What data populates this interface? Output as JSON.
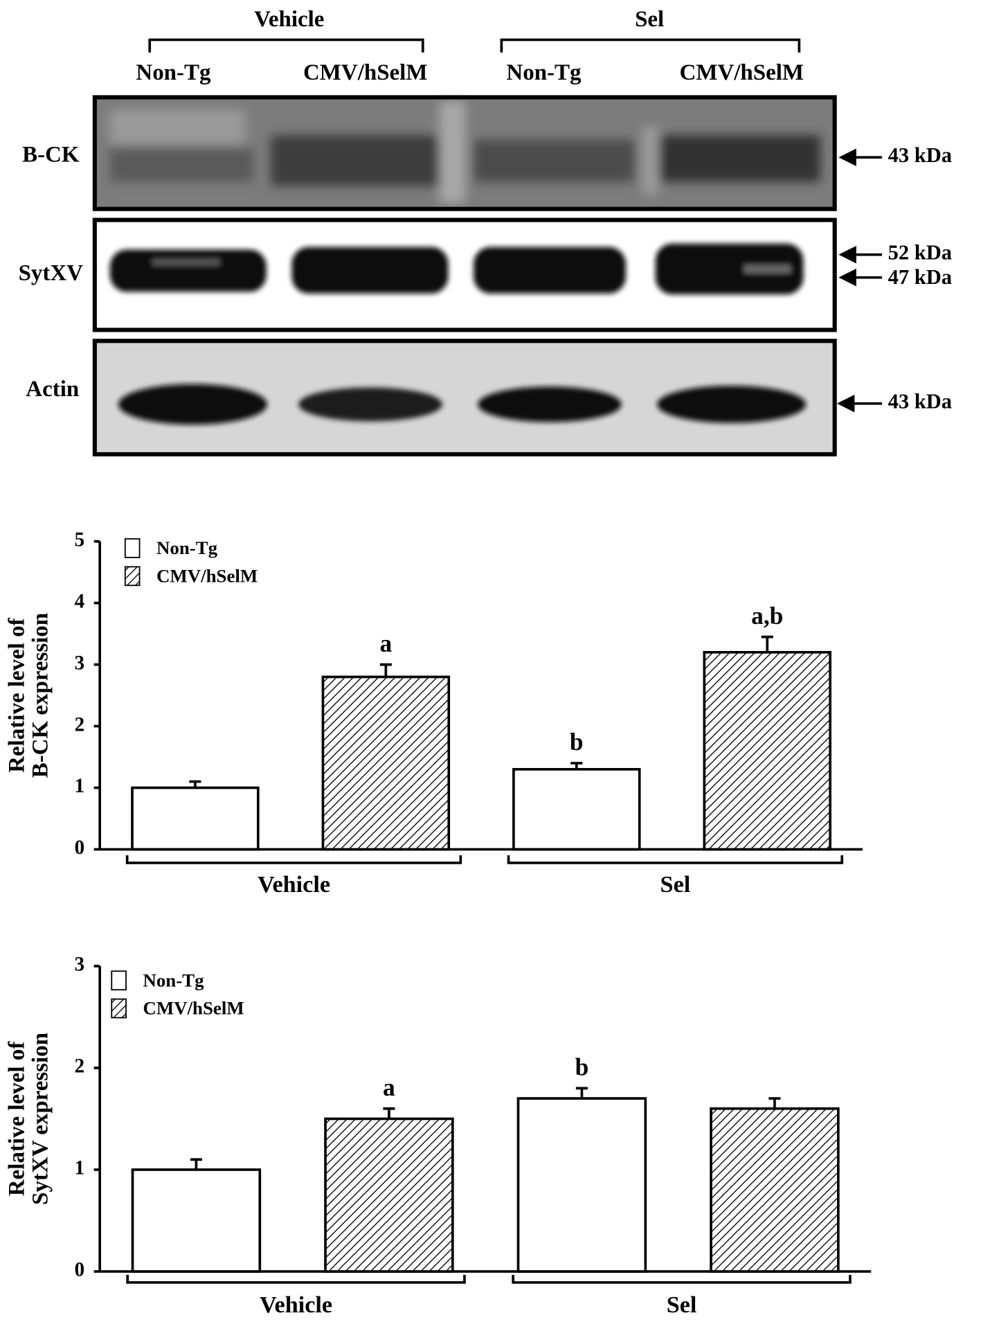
{
  "blot": {
    "groups": [
      "Vehicle",
      "Sel"
    ],
    "lanes": [
      "Non-Tg",
      "CMV/hSelM",
      "Non-Tg",
      "CMV/hSelM"
    ],
    "rows": [
      {
        "label": "B-CK",
        "markers": [
          "43 kDa"
        ]
      },
      {
        "label": "SytXV",
        "markers": [
          "52 kDa",
          "47 kDa"
        ]
      },
      {
        "label": "Actin",
        "markers": [
          "43 kDa"
        ]
      }
    ]
  },
  "chart_data": [
    {
      "type": "bar",
      "ylabel": [
        "Relative level of",
        "B-CK expression"
      ],
      "categories": [
        "Vehicle",
        "Sel"
      ],
      "series": [
        {
          "name": "Non-Tg",
          "color": "#ffffff",
          "pattern": "solid",
          "values": [
            1.0,
            1.3
          ],
          "errors": [
            0.1,
            0.1
          ],
          "annotations": [
            null,
            "b"
          ]
        },
        {
          "name": "CMV/hSelM",
          "color": "#ffffff",
          "pattern": "hatch",
          "values": [
            2.8,
            3.2
          ],
          "errors": [
            0.2,
            0.25
          ],
          "annotations": [
            "a",
            "a,b"
          ]
        }
      ],
      "ylim": [
        0,
        5
      ],
      "yticks": [
        0,
        1,
        2,
        3,
        4,
        5
      ]
    },
    {
      "type": "bar",
      "ylabel": [
        "Relative level of",
        "SytXV expression"
      ],
      "categories": [
        "Vehicle",
        "Sel"
      ],
      "series": [
        {
          "name": "Non-Tg",
          "color": "#ffffff",
          "pattern": "solid",
          "values": [
            1.0,
            1.7
          ],
          "errors": [
            0.1,
            0.1
          ],
          "annotations": [
            null,
            "b"
          ]
        },
        {
          "name": "CMV/hSelM",
          "color": "#ffffff",
          "pattern": "hatch",
          "values": [
            1.5,
            1.6
          ],
          "errors": [
            0.1,
            0.1
          ],
          "annotations": [
            "a",
            null
          ]
        }
      ],
      "ylim": [
        0,
        3
      ],
      "yticks": [
        0,
        1,
        2,
        3
      ]
    }
  ]
}
